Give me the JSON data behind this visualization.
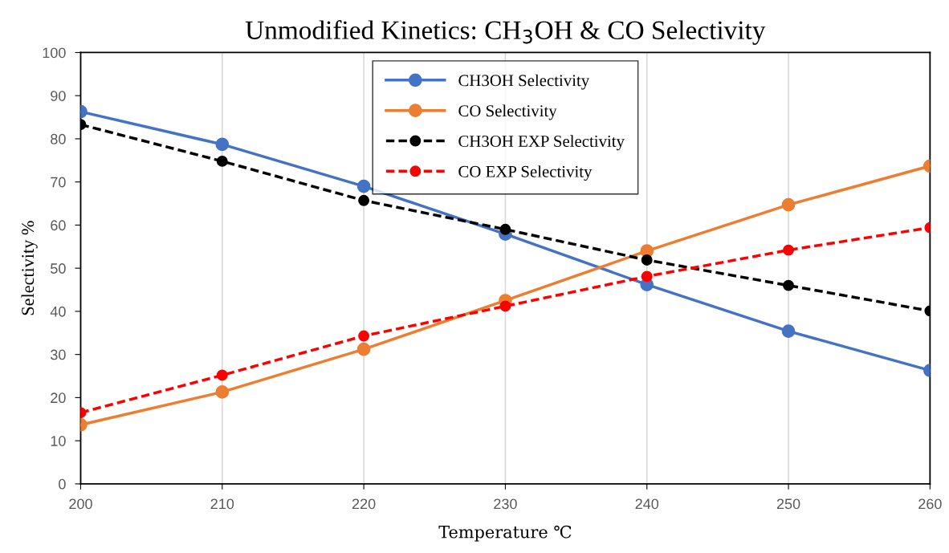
{
  "chart_data": {
    "type": "line",
    "title": "Unmodified Kinetics: CH$_{3}$OH & CO Selectivity",
    "xlabel": "Temperature ℃",
    "ylabel": "Selectivity %",
    "x": [
      200,
      210,
      220,
      230,
      240,
      250,
      260
    ],
    "series": [
      {
        "name": "CH3OH Selectivity",
        "color": "#4472c4",
        "line_style": "solid",
        "values": [
          86.3,
          78.7,
          69.0,
          57.9,
          46.2,
          35.4,
          26.3
        ]
      },
      {
        "name": "CO Selectivity",
        "color": "#ed7d31",
        "line_style": "solid",
        "values": [
          13.7,
          21.3,
          31.2,
          42.5,
          54.0,
          64.7,
          73.7
        ]
      },
      {
        "name": "CH3OH EXP Selectivity",
        "color": "#000000",
        "line_style": "dashed",
        "values": [
          83.3,
          74.8,
          65.7,
          59.0,
          51.9,
          46.0,
          40.1
        ]
      },
      {
        "name": "CO EXP Selectivity",
        "color": "#ff0000",
        "line_style": "dashed",
        "values": [
          16.5,
          25.2,
          34.3,
          41.2,
          48.1,
          54.2,
          59.4
        ]
      }
    ],
    "xlim": [
      200,
      260
    ],
    "xticks": [
      200,
      210,
      220,
      230,
      240,
      250,
      260
    ],
    "ylim": [
      0,
      100
    ],
    "yticks": [
      0,
      10,
      20,
      30,
      40,
      50,
      60,
      70,
      80,
      90,
      100
    ],
    "grid": "x",
    "legend": "top",
    "marker": "circle"
  }
}
